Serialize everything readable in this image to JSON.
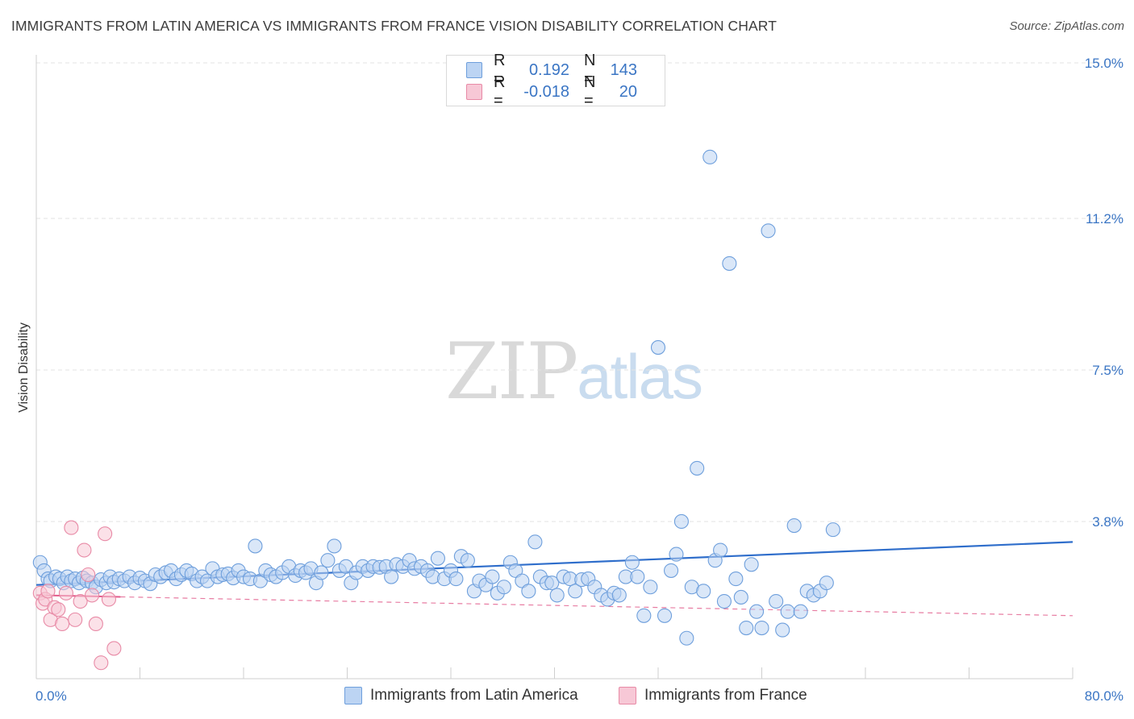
{
  "title": "IMMIGRANTS FROM LATIN AMERICA VS IMMIGRANTS FROM FRANCE VISION DISABILITY CORRELATION CHART",
  "source": "Source: ZipAtlas.com",
  "watermark": {
    "zip": "ZIP",
    "atlas": "atlas"
  },
  "legend_top": {
    "rows": [
      {
        "r_label": "R =",
        "r_value": "0.192",
        "n_label": "N =",
        "n_value": "143"
      },
      {
        "r_label": "R =",
        "r_value": "-0.018",
        "n_label": "N =",
        "n_value": "20"
      }
    ]
  },
  "legend_bottom": {
    "series1": "Immigrants from Latin America",
    "series2": "Immigrants from France"
  },
  "colors": {
    "blue_fill": "#bcd4f3",
    "blue_stroke": "#6e9fdc",
    "blue_line": "#2f6ecb",
    "pink_fill": "#f7c8d6",
    "pink_stroke": "#e88aa6",
    "pink_line": "#e25c8b",
    "grid": "#e3e3e3",
    "tick_text": "#3a75c4"
  },
  "chart_data": {
    "type": "scatter",
    "title": "IMMIGRANTS FROM LATIN AMERICA VS IMMIGRANTS FROM FRANCE VISION DISABILITY CORRELATION CHART",
    "xlabel": "",
    "ylabel": "Vision Disability",
    "xlim": [
      0,
      80
    ],
    "ylim": [
      0,
      15.0
    ],
    "x_tick_labels": [
      "0.0%",
      "80.0%"
    ],
    "y_ticks": [
      3.8,
      7.5,
      11.2,
      15.0
    ],
    "y_tick_labels": [
      "3.8%",
      "7.5%",
      "11.2%",
      "15.0%"
    ],
    "series": [
      {
        "name": "Immigrants from Latin America",
        "R": 0.192,
        "N": 143,
        "trend": {
          "x": [
            0,
            80
          ],
          "y": [
            2.25,
            3.3
          ]
        },
        "points": [
          [
            0.3,
            2.8
          ],
          [
            0.6,
            2.6
          ],
          [
            0.9,
            2.4
          ],
          [
            1.1,
            2.35
          ],
          [
            1.5,
            2.45
          ],
          [
            1.8,
            2.4
          ],
          [
            2.1,
            2.3
          ],
          [
            2.4,
            2.45
          ],
          [
            2.7,
            2.35
          ],
          [
            3.0,
            2.4
          ],
          [
            3.3,
            2.3
          ],
          [
            3.6,
            2.42
          ],
          [
            3.9,
            2.35
          ],
          [
            4.3,
            2.3
          ],
          [
            4.6,
            2.2
          ],
          [
            5.0,
            2.38
          ],
          [
            5.4,
            2.3
          ],
          [
            5.7,
            2.45
          ],
          [
            6.0,
            2.32
          ],
          [
            6.4,
            2.4
          ],
          [
            6.8,
            2.35
          ],
          [
            7.2,
            2.45
          ],
          [
            7.6,
            2.3
          ],
          [
            8.0,
            2.42
          ],
          [
            8.4,
            2.35
          ],
          [
            8.8,
            2.28
          ],
          [
            9.2,
            2.5
          ],
          [
            9.6,
            2.45
          ],
          [
            10.0,
            2.55
          ],
          [
            10.4,
            2.6
          ],
          [
            10.8,
            2.4
          ],
          [
            11.2,
            2.5
          ],
          [
            11.6,
            2.6
          ],
          [
            12.0,
            2.52
          ],
          [
            12.4,
            2.35
          ],
          [
            12.8,
            2.45
          ],
          [
            13.2,
            2.35
          ],
          [
            13.6,
            2.65
          ],
          [
            14.0,
            2.45
          ],
          [
            14.4,
            2.5
          ],
          [
            14.8,
            2.52
          ],
          [
            15.2,
            2.42
          ],
          [
            15.6,
            2.6
          ],
          [
            16.0,
            2.45
          ],
          [
            16.5,
            2.4
          ],
          [
            16.9,
            3.2
          ],
          [
            17.3,
            2.35
          ],
          [
            17.7,
            2.6
          ],
          [
            18.1,
            2.5
          ],
          [
            18.5,
            2.45
          ],
          [
            19.0,
            2.55
          ],
          [
            19.5,
            2.7
          ],
          [
            20.0,
            2.48
          ],
          [
            20.4,
            2.6
          ],
          [
            20.8,
            2.55
          ],
          [
            21.2,
            2.65
          ],
          [
            21.6,
            2.3
          ],
          [
            22.0,
            2.55
          ],
          [
            22.5,
            2.85
          ],
          [
            23.0,
            3.2
          ],
          [
            23.4,
            2.6
          ],
          [
            23.9,
            2.7
          ],
          [
            24.3,
            2.3
          ],
          [
            24.7,
            2.55
          ],
          [
            25.2,
            2.7
          ],
          [
            25.6,
            2.6
          ],
          [
            26.0,
            2.7
          ],
          [
            26.5,
            2.68
          ],
          [
            27.0,
            2.7
          ],
          [
            27.4,
            2.45
          ],
          [
            27.8,
            2.75
          ],
          [
            28.3,
            2.7
          ],
          [
            28.8,
            2.85
          ],
          [
            29.2,
            2.65
          ],
          [
            29.7,
            2.7
          ],
          [
            30.2,
            2.6
          ],
          [
            30.6,
            2.45
          ],
          [
            31.0,
            2.9
          ],
          [
            31.5,
            2.4
          ],
          [
            32.0,
            2.6
          ],
          [
            32.4,
            2.4
          ],
          [
            32.8,
            2.95
          ],
          [
            33.3,
            2.85
          ],
          [
            33.8,
            2.1
          ],
          [
            34.2,
            2.35
          ],
          [
            34.7,
            2.25
          ],
          [
            35.2,
            2.45
          ],
          [
            35.6,
            2.05
          ],
          [
            36.1,
            2.2
          ],
          [
            36.6,
            2.8
          ],
          [
            37.0,
            2.6
          ],
          [
            37.5,
            2.35
          ],
          [
            38.0,
            2.1
          ],
          [
            38.5,
            3.3
          ],
          [
            38.9,
            2.45
          ],
          [
            39.4,
            2.3
          ],
          [
            39.8,
            2.3
          ],
          [
            40.2,
            2.0
          ],
          [
            40.7,
            2.45
          ],
          [
            41.2,
            2.4
          ],
          [
            41.6,
            2.1
          ],
          [
            42.1,
            2.38
          ],
          [
            42.6,
            2.4
          ],
          [
            43.1,
            2.2
          ],
          [
            43.6,
            2.0
          ],
          [
            44.1,
            1.9
          ],
          [
            44.6,
            2.05
          ],
          [
            45.0,
            2.0
          ],
          [
            45.5,
            2.45
          ],
          [
            46.0,
            2.8
          ],
          [
            46.4,
            2.45
          ],
          [
            46.9,
            1.5
          ],
          [
            47.4,
            2.2
          ],
          [
            48.0,
            8.05
          ],
          [
            48.5,
            1.5
          ],
          [
            49.0,
            2.6
          ],
          [
            49.4,
            3.0
          ],
          [
            49.8,
            3.8
          ],
          [
            50.2,
            0.95
          ],
          [
            50.6,
            2.2
          ],
          [
            51.0,
            5.1
          ],
          [
            51.5,
            2.1
          ],
          [
            52.0,
            12.7
          ],
          [
            52.4,
            2.85
          ],
          [
            52.8,
            3.1
          ],
          [
            53.1,
            1.85
          ],
          [
            53.5,
            10.1
          ],
          [
            54.0,
            2.4
          ],
          [
            54.4,
            1.95
          ],
          [
            54.8,
            1.2
          ],
          [
            55.2,
            2.75
          ],
          [
            55.6,
            1.6
          ],
          [
            56.0,
            1.2
          ],
          [
            56.5,
            10.9
          ],
          [
            57.1,
            1.85
          ],
          [
            57.6,
            1.15
          ],
          [
            58.0,
            1.6
          ],
          [
            58.5,
            3.7
          ],
          [
            59.0,
            1.6
          ],
          [
            59.5,
            2.1
          ],
          [
            60.0,
            2.0
          ],
          [
            60.5,
            2.1
          ],
          [
            61.0,
            2.3
          ],
          [
            61.5,
            3.6
          ]
        ]
      },
      {
        "name": "Immigrants from France",
        "R": -0.018,
        "N": 20,
        "trend": {
          "x": [
            0,
            80
          ],
          "y": [
            2.0,
            1.5
          ]
        },
        "points": [
          [
            0.3,
            2.05
          ],
          [
            0.5,
            1.8
          ],
          [
            0.7,
            1.9
          ],
          [
            0.9,
            2.1
          ],
          [
            1.1,
            1.4
          ],
          [
            1.4,
            1.7
          ],
          [
            1.7,
            1.65
          ],
          [
            2.0,
            1.3
          ],
          [
            2.3,
            2.05
          ],
          [
            2.7,
            3.65
          ],
          [
            3.0,
            1.4
          ],
          [
            3.4,
            1.85
          ],
          [
            3.7,
            3.1
          ],
          [
            4.0,
            2.5
          ],
          [
            4.3,
            2.0
          ],
          [
            4.6,
            1.3
          ],
          [
            5.0,
            0.35
          ],
          [
            5.3,
            3.5
          ],
          [
            5.6,
            1.9
          ],
          [
            6.0,
            0.7
          ]
        ]
      }
    ]
  }
}
